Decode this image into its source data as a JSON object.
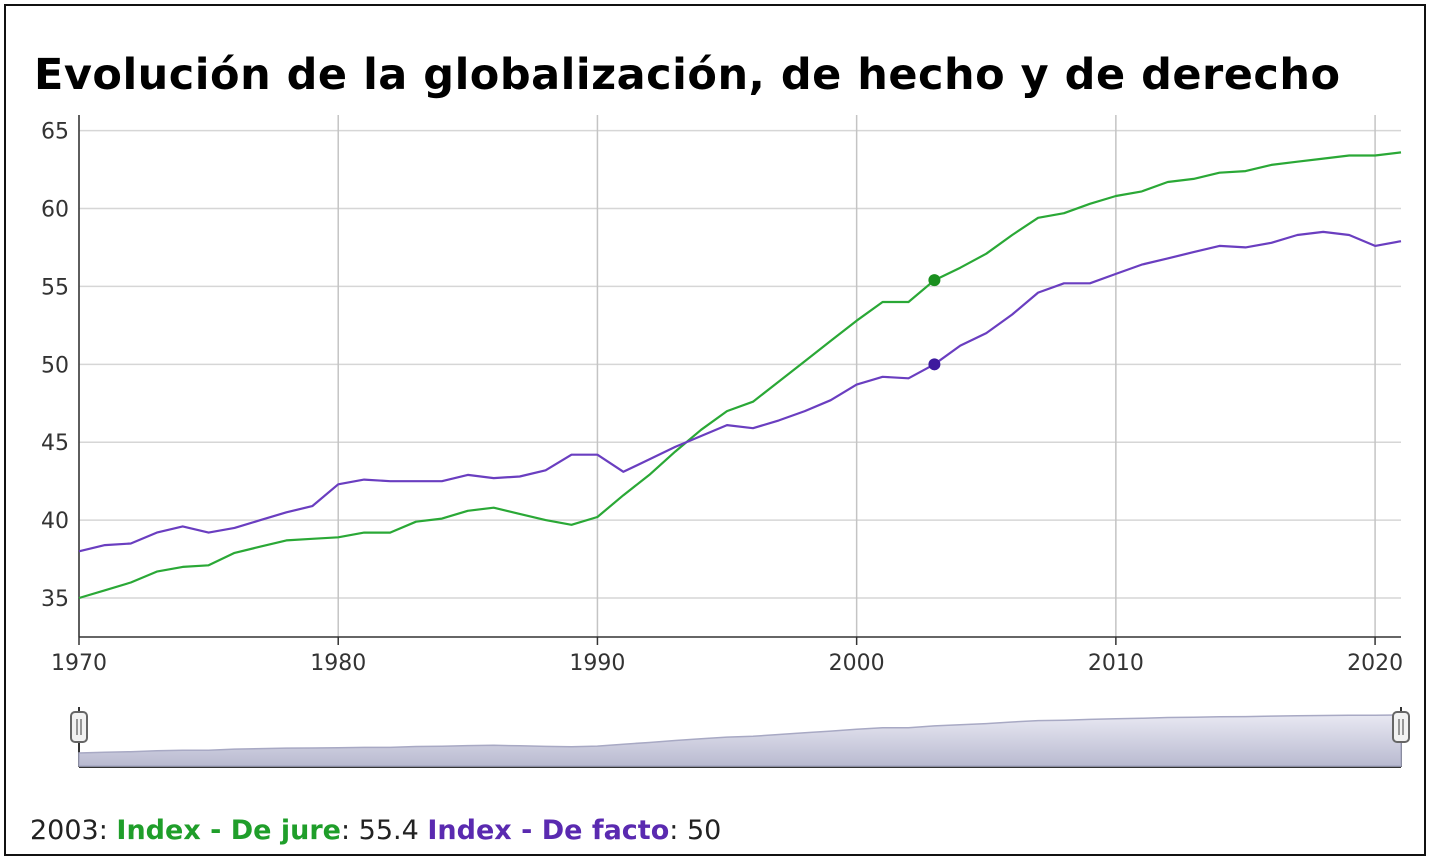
{
  "chart_data": {
    "type": "line",
    "title": "Evolución de la globalización, de hecho y de derecho",
    "x": [
      1970,
      1971,
      1972,
      1973,
      1974,
      1975,
      1976,
      1977,
      1978,
      1979,
      1980,
      1981,
      1982,
      1983,
      1984,
      1985,
      1986,
      1987,
      1988,
      1989,
      1990,
      1991,
      1992,
      1993,
      1994,
      1995,
      1996,
      1997,
      1998,
      1999,
      2000,
      2001,
      2002,
      2003,
      2004,
      2005,
      2006,
      2007,
      2008,
      2009,
      2010,
      2011,
      2012,
      2013,
      2014,
      2015,
      2016,
      2017,
      2018,
      2019,
      2020,
      2021
    ],
    "series": [
      {
        "name": "Index - De jure",
        "color": "#2aa836",
        "values": [
          35.0,
          35.5,
          36.0,
          36.7,
          37.0,
          37.1,
          37.9,
          38.3,
          38.7,
          38.8,
          38.9,
          39.2,
          39.2,
          39.9,
          40.1,
          40.6,
          40.8,
          40.4,
          40.0,
          39.7,
          40.2,
          41.6,
          42.9,
          44.4,
          45.8,
          47.0,
          47.6,
          48.9,
          50.2,
          51.5,
          52.8,
          54.0,
          54.0,
          55.4,
          56.2,
          57.1,
          58.3,
          59.4,
          59.7,
          60.3,
          60.8,
          61.1,
          61.7,
          61.9,
          62.3,
          62.4,
          62.8,
          63.0,
          63.2,
          63.4,
          63.4,
          63.6
        ]
      },
      {
        "name": "Index - De facto",
        "color": "#6a3ec0",
        "values": [
          38.0,
          38.4,
          38.5,
          39.2,
          39.6,
          39.2,
          39.5,
          40.0,
          40.5,
          40.9,
          42.3,
          42.6,
          42.5,
          42.5,
          42.5,
          42.9,
          42.7,
          42.8,
          43.2,
          44.2,
          44.2,
          43.1,
          43.9,
          44.7,
          45.4,
          46.1,
          45.9,
          46.4,
          47.0,
          47.7,
          48.7,
          49.2,
          49.1,
          50.0,
          51.2,
          52.0,
          53.2,
          54.6,
          55.2,
          55.2,
          55.8,
          56.4,
          56.8,
          57.2,
          57.6,
          57.5,
          57.8,
          58.3,
          58.5,
          58.3,
          57.6,
          57.9
        ]
      }
    ],
    "xlim": [
      1970,
      2021
    ],
    "ylim": [
      32.5,
      66
    ],
    "x_ticks": [
      "1970",
      "1980",
      "1990",
      "2000",
      "2010",
      "2020"
    ],
    "y_ticks": [
      "35",
      "40",
      "45",
      "50",
      "55",
      "60",
      "65"
    ],
    "grid": true,
    "highlight_x": 2003,
    "highlight_colors": [
      "#1a8f1f",
      "#3d1a9e"
    ]
  },
  "readout": {
    "year": "2003",
    "sep1": ": ",
    "label1": "Index - De jure",
    "sep2": ": ",
    "value1": "55.4",
    "label2": "Index - De facto",
    "sep3": ": ",
    "value2": "50"
  }
}
